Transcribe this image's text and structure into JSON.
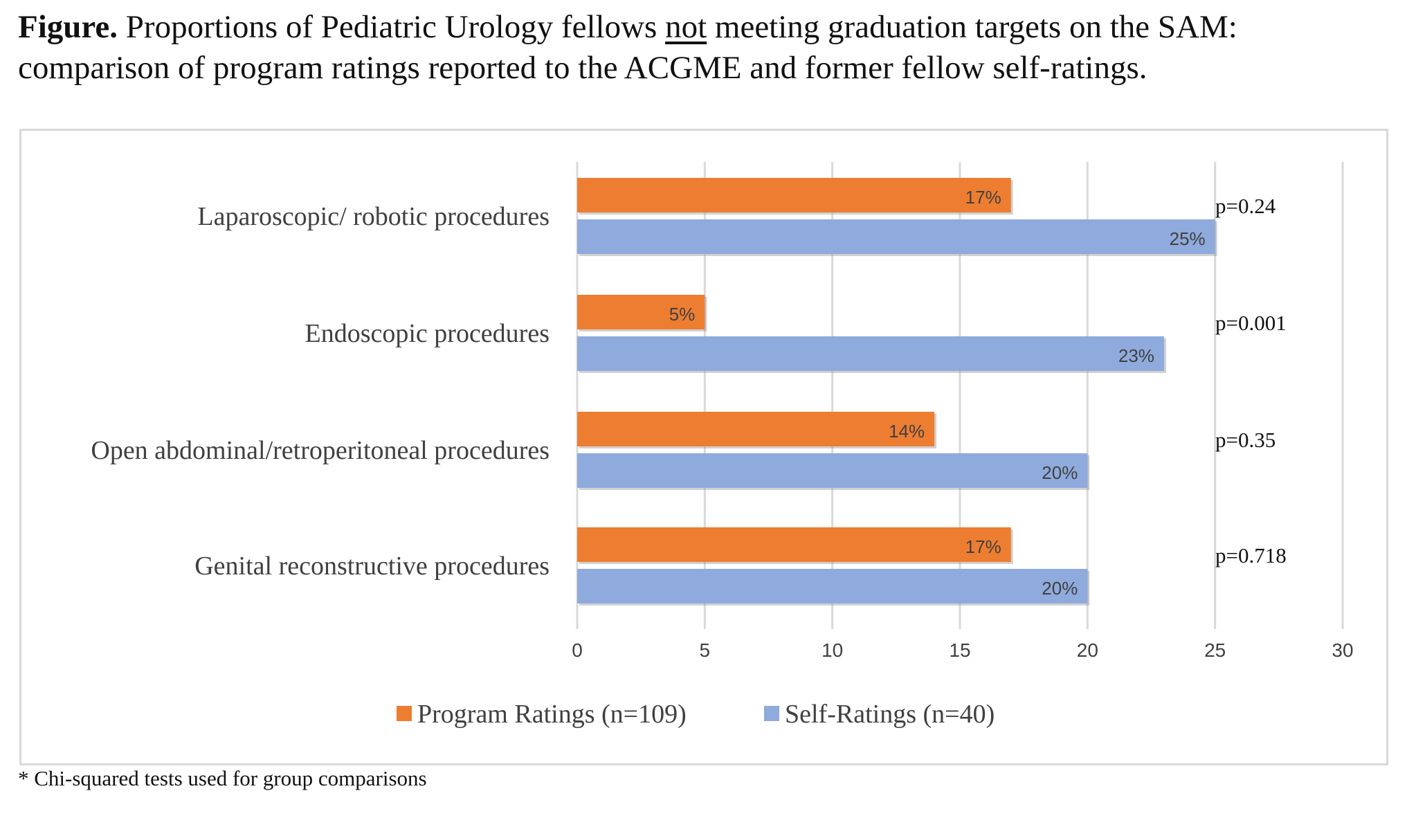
{
  "caption": {
    "bold_label": "Figure.",
    "text_before": "Proportions of Pediatric Urology fellows",
    "underlined_word": "not",
    "text_after": "meeting graduation targets on the SAM: comparison of program ratings reported to the ACGME and former fellow self-ratings."
  },
  "footnote": "* Chi-squared tests used for group comparisons",
  "colors": {
    "program": "#ED7D31",
    "self": "#8FAADC",
    "gridline": "#d9d9d9",
    "label_text": "#404040"
  },
  "chart_data": {
    "type": "bar",
    "orientation": "horizontal",
    "categories": [
      "Laparoscopic/ robotic procedures",
      "Endoscopic procedures",
      "Open abdominal/retroperitoneal procedures",
      "Genital reconstructive procedures"
    ],
    "series": [
      {
        "name": "Program Ratings (n=109)",
        "values": [
          17,
          5,
          14,
          17
        ],
        "labels": [
          "17%",
          "5%",
          "14%",
          "17%"
        ]
      },
      {
        "name": "Self-Ratings (n=40)",
        "values": [
          25,
          23,
          20,
          20
        ],
        "labels": [
          "25%",
          "23%",
          "20%",
          "20%"
        ]
      }
    ],
    "p_values": [
      "p=0.24",
      "p=0.001",
      "p=0.35",
      "p=0.718"
    ],
    "xlim": [
      0,
      30
    ],
    "xticks": [
      "0",
      "5",
      "10",
      "15",
      "20",
      "25",
      "30"
    ],
    "grid": true,
    "legend_position": "bottom"
  }
}
